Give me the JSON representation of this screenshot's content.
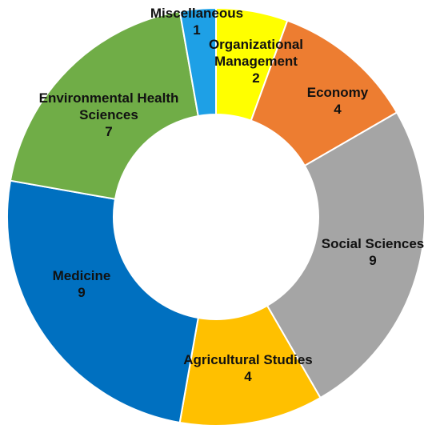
{
  "chart_data": {
    "type": "pie",
    "variant": "donut",
    "title": "",
    "categories": [
      "Organizational Management",
      "Economy",
      "Social Sciences",
      "Agricultural Studies",
      "Medicine",
      "Environmental Health Sciences",
      "Miscellaneous"
    ],
    "values": [
      2,
      4,
      9,
      4,
      9,
      7,
      1
    ],
    "colors": [
      "#FFFF00",
      "#ED7D31",
      "#A5A5A5",
      "#FFC000",
      "#0070C0",
      "#70AD47",
      "#1EA0E6"
    ],
    "labels": [
      {
        "lines": [
          "Organizational",
          "Management"
        ],
        "value": "2"
      },
      {
        "lines": [
          "Economy"
        ],
        "value": "4"
      },
      {
        "lines": [
          "Social Sciences"
        ],
        "value": "9"
      },
      {
        "lines": [
          "Agricultural Studies"
        ],
        "value": "4"
      },
      {
        "lines": [
          "Medicine"
        ],
        "value": "9"
      },
      {
        "lines": [
          "Environmental Health",
          "Sciences"
        ],
        "value": "7"
      },
      {
        "lines": [
          "Miscellaneous"
        ],
        "value": "1"
      }
    ],
    "legend": "none",
    "start_angle_deg": 0,
    "direction": "clockwise"
  }
}
